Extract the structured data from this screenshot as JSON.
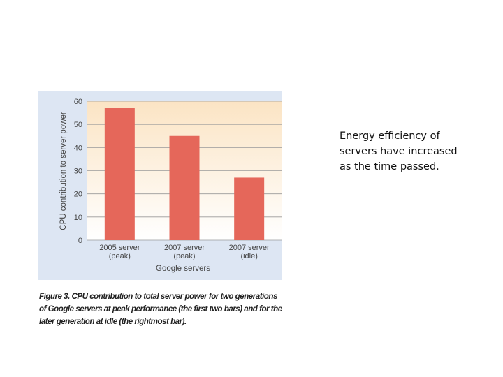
{
  "chart_data": {
    "type": "bar",
    "title": "",
    "categories": [
      [
        "2005 server",
        "(peak)"
      ],
      [
        "2007 server",
        "(peak)"
      ],
      [
        "2007 server",
        "(idle)"
      ]
    ],
    "values": [
      57,
      45,
      27
    ],
    "ylim": [
      0,
      60
    ],
    "yticks": [
      0,
      10,
      20,
      30,
      40,
      50,
      60
    ],
    "ylabel": "CPU contribution to server power",
    "xlabel": "Google servers",
    "bar_color": "#e5675a",
    "plot_bg_top": "#fbe4c4",
    "plot_bg_bottom": "#ffffff",
    "axis_band_color": "#dde6f3",
    "grid": true
  },
  "caption": "Figure 3. CPU contribution to total server power for two generations of Google servers at peak performance (the first two bars) and for the later generation at idle (the rightmost bar).",
  "side_text": "Energy efficiency of servers have increased as the time passed."
}
